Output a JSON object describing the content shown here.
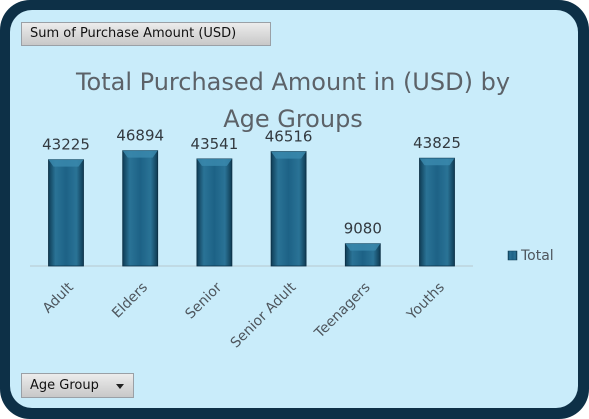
{
  "field_buttons": {
    "value_field": "Sum of Purchase Amount (USD)",
    "axis_field": "Age Group"
  },
  "colors": {
    "frame": "#0d3047",
    "plot_background": "#c9ecfa",
    "bar": "#1d5f80"
  },
  "chart_data": {
    "type": "bar",
    "title": "Total Purchased Amount in (USD) by Age Groups",
    "title_lines": [
      "Total Purchased Amount in (USD) by",
      "Age Groups"
    ],
    "categories": [
      "Adult",
      "Elders",
      "Senior",
      "Senior Adult",
      "Teenagers",
      "Youths"
    ],
    "series": [
      {
        "name": "Total",
        "values": [
          43225,
          46894,
          43541,
          46516,
          9080,
          43825
        ]
      }
    ],
    "ylim": [
      0,
      50000
    ],
    "grid": false,
    "legend": "right"
  }
}
